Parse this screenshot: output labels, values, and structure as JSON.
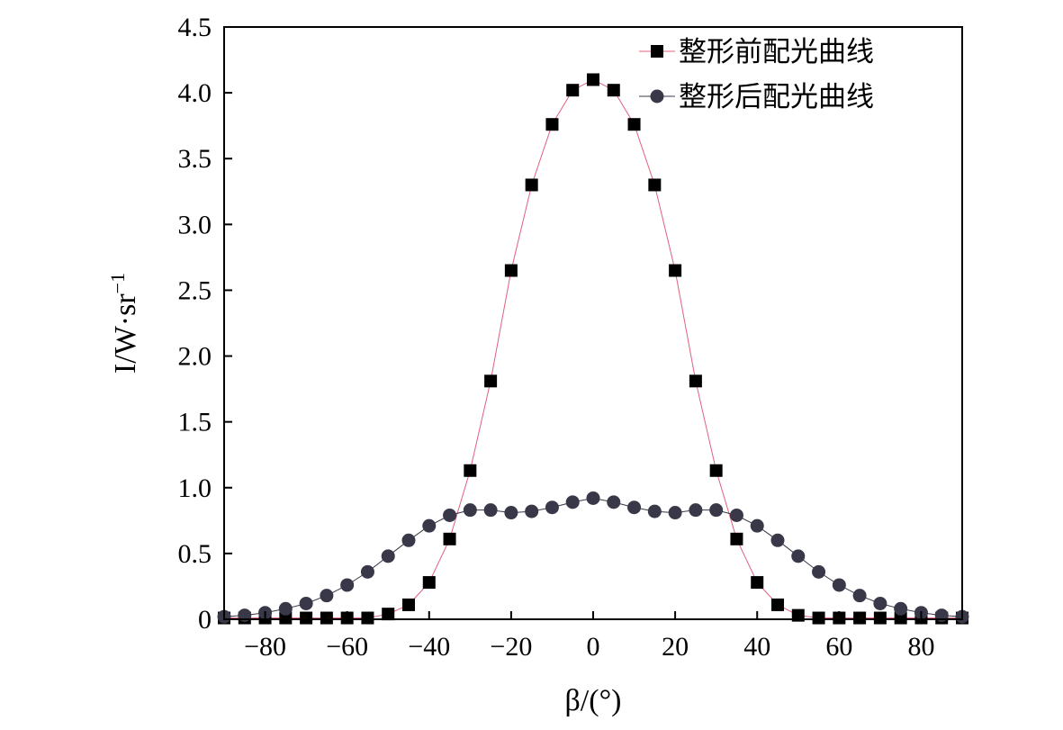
{
  "chart_data": {
    "type": "scatter",
    "xlabel": "β/(°)",
    "ylabel": "I/W·sr",
    "ylabel_superscript": "−1",
    "xlim": [
      -90,
      90
    ],
    "ylim": [
      0,
      4.5
    ],
    "xticks": [
      -80,
      -60,
      -40,
      -20,
      0,
      20,
      40,
      60,
      80
    ],
    "xtick_labels": [
      "−80",
      "−60",
      "−40",
      "−20",
      "0",
      "20",
      "40",
      "60",
      "80"
    ],
    "yticks": [
      0,
      0.5,
      1.0,
      1.5,
      2.0,
      2.5,
      3.0,
      3.5,
      4.0,
      4.5
    ],
    "ytick_labels": [
      "0",
      "0.5",
      "1.0",
      "1.5",
      "2.0",
      "2.5",
      "3.0",
      "3.5",
      "4.0",
      "4.5"
    ],
    "grid": false,
    "legend_position": "top-right",
    "series": [
      {
        "name": "整形前配光曲线",
        "marker": "square",
        "marker_color": "#000000",
        "line_color": "#e0607e",
        "x": [
          -90,
          -85,
          -80,
          -75,
          -70,
          -65,
          -60,
          -55,
          -50,
          -45,
          -40,
          -35,
          -30,
          -25,
          -20,
          -15,
          -10,
          -5,
          0,
          5,
          10,
          15,
          20,
          25,
          30,
          35,
          40,
          45,
          50,
          55,
          60,
          65,
          70,
          75,
          80,
          85,
          90
        ],
        "y": [
          0.01,
          0.01,
          0.01,
          0.01,
          0.01,
          0.01,
          0.01,
          0.01,
          0.04,
          0.11,
          0.28,
          0.61,
          1.13,
          1.81,
          2.65,
          3.3,
          3.76,
          4.02,
          4.1,
          4.02,
          3.76,
          3.3,
          2.65,
          1.81,
          1.13,
          0.61,
          0.28,
          0.11,
          0.03,
          0.01,
          0.01,
          0.01,
          0.01,
          0.01,
          0.01,
          0.01,
          0.01
        ]
      },
      {
        "name": "整形后配光曲线",
        "marker": "circle",
        "marker_color": "#383848",
        "line_color": "#383848",
        "x": [
          -90,
          -85,
          -80,
          -75,
          -70,
          -65,
          -60,
          -55,
          -50,
          -45,
          -40,
          -35,
          -30,
          -25,
          -20,
          -15,
          -10,
          -5,
          0,
          5,
          10,
          15,
          20,
          25,
          30,
          35,
          40,
          45,
          50,
          55,
          60,
          65,
          70,
          75,
          80,
          85,
          90
        ],
        "y": [
          0.02,
          0.03,
          0.05,
          0.08,
          0.12,
          0.18,
          0.26,
          0.36,
          0.48,
          0.6,
          0.71,
          0.79,
          0.83,
          0.83,
          0.81,
          0.82,
          0.85,
          0.89,
          0.92,
          0.89,
          0.85,
          0.82,
          0.81,
          0.83,
          0.83,
          0.79,
          0.71,
          0.6,
          0.48,
          0.36,
          0.26,
          0.18,
          0.12,
          0.08,
          0.05,
          0.03,
          0.02
        ]
      }
    ]
  }
}
